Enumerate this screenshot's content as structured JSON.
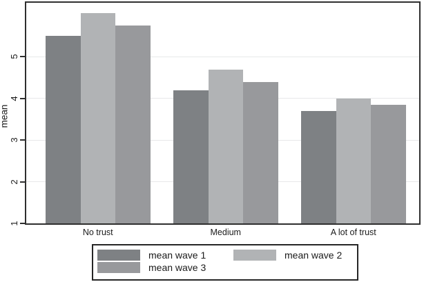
{
  "chart_data": {
    "type": "bar",
    "title": "",
    "categories": [
      "No trust",
      "Medium",
      "A lot of trust"
    ],
    "series": [
      {
        "name": "mean wave 1",
        "color": "#7e8184",
        "values": [
          5.5,
          4.2,
          3.7
        ]
      },
      {
        "name": "mean wave 2",
        "color": "#b1b3b5",
        "values": [
          6.05,
          4.7,
          4.0
        ]
      },
      {
        "name": "mean wave 3",
        "color": "#98999c",
        "values": [
          5.75,
          4.4,
          3.85
        ]
      }
    ],
    "xlabel": "",
    "ylabel": "mean",
    "yticks": [
      1,
      2,
      3,
      4,
      5
    ],
    "ylim": [
      1,
      6.3
    ],
    "grid": "horizontal-light",
    "legend_position": "bottom",
    "legend_entries": [
      "mean wave 1",
      "mean wave 2",
      "mean wave 3"
    ]
  },
  "colors": {
    "background": "#ffffff",
    "frame": "#2e2e2e",
    "gridline": "#e7e8e9",
    "text": "#1a1a1a"
  }
}
